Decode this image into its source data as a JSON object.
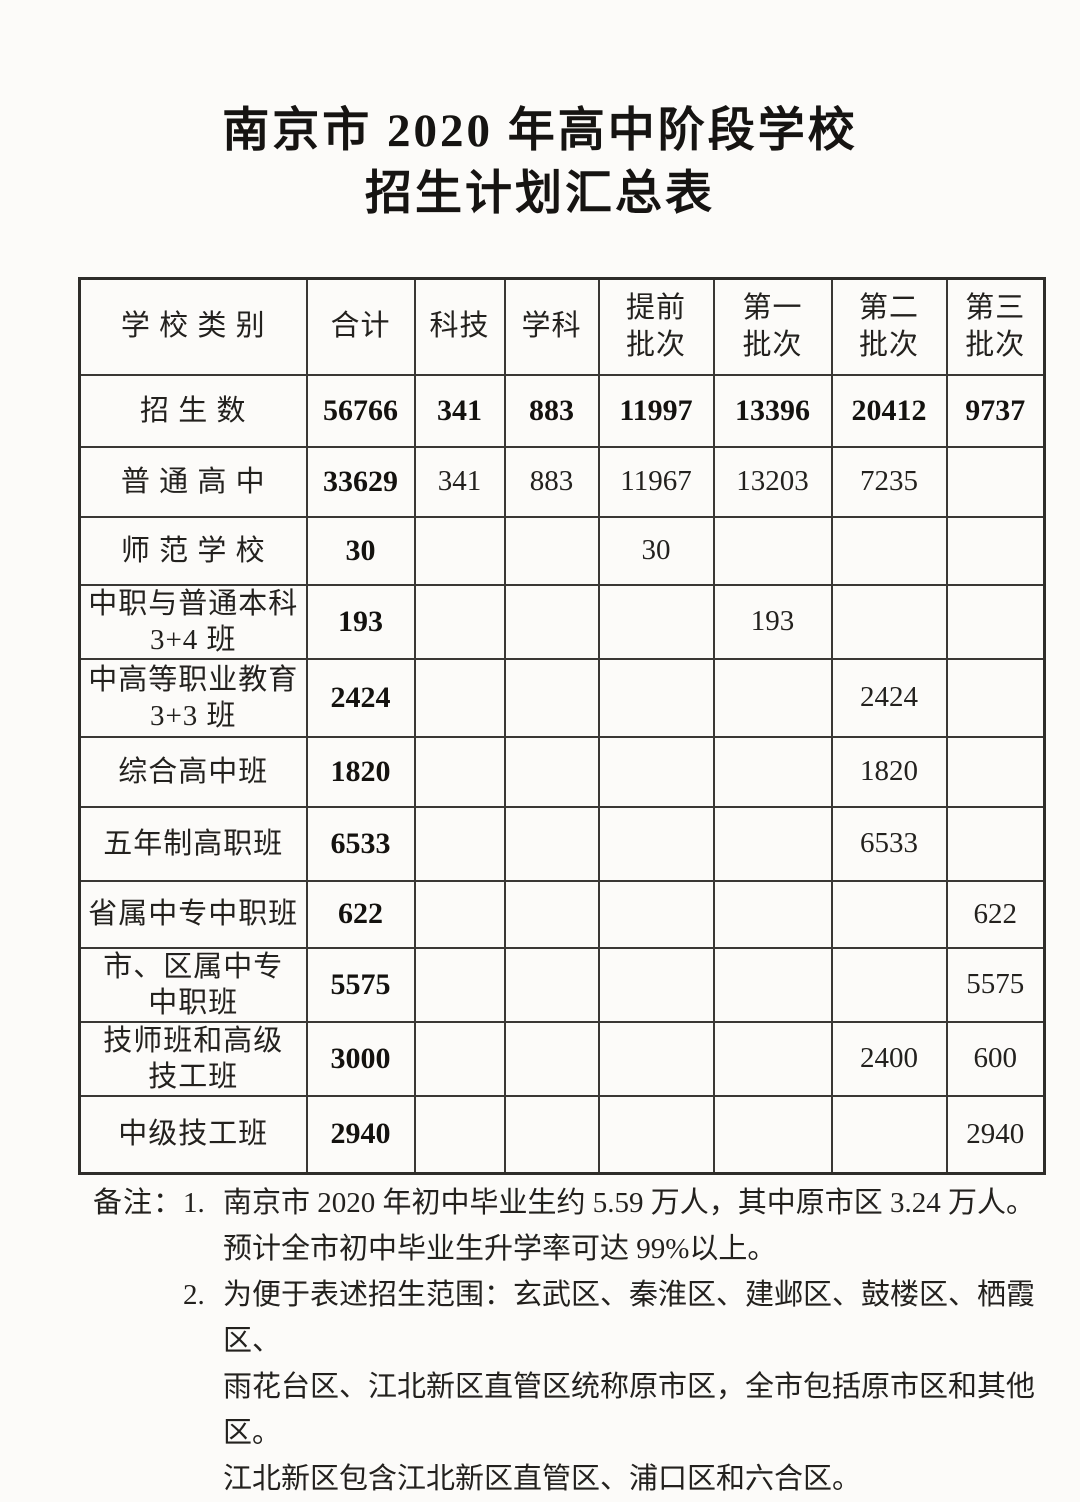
{
  "page": {
    "title_line1": "南京市 2020 年高中阶段学校",
    "title_line2": "招生计划汇总表"
  },
  "colors": {
    "background": "#fcfbf9",
    "text": "#23211e",
    "border": "#3a3835"
  },
  "table": {
    "columns": [
      "学 校 类 别",
      "合计",
      "科技",
      "学科",
      "提前\n批次",
      "第一\n批次",
      "第二\n批次",
      "第三\n批次"
    ],
    "rows": [
      {
        "label": "招 生 数",
        "values": [
          "56766",
          "341",
          "883",
          "11997",
          "13396",
          "20412",
          "9737"
        ],
        "emphasis": "all"
      },
      {
        "label": "普 通 高 中",
        "values": [
          "33629",
          "341",
          "883",
          "11967",
          "13203",
          "7235",
          ""
        ],
        "emphasis": "first"
      },
      {
        "label": "师 范 学 校",
        "values": [
          "30",
          "",
          "",
          "30",
          "",
          "",
          ""
        ],
        "emphasis": "first"
      },
      {
        "label": "中职与普通本科\n3+4 班",
        "values": [
          "193",
          "",
          "",
          "",
          "193",
          "",
          ""
        ],
        "emphasis": "first"
      },
      {
        "label": "中高等职业教育\n3+3 班",
        "values": [
          "2424",
          "",
          "",
          "",
          "",
          "2424",
          ""
        ],
        "emphasis": "first"
      },
      {
        "label": "综合高中班",
        "values": [
          "1820",
          "",
          "",
          "",
          "",
          "1820",
          ""
        ],
        "emphasis": "first"
      },
      {
        "label": "五年制高职班",
        "values": [
          "6533",
          "",
          "",
          "",
          "",
          "6533",
          ""
        ],
        "emphasis": "first"
      },
      {
        "label": "省属中专中职班",
        "values": [
          "622",
          "",
          "",
          "",
          "",
          "",
          "622"
        ],
        "emphasis": "first"
      },
      {
        "label": "市、区属中专\n中职班",
        "values": [
          "5575",
          "",
          "",
          "",
          "",
          "",
          "5575"
        ],
        "emphasis": "first"
      },
      {
        "label": "技师班和高级\n技工班",
        "values": [
          "3000",
          "",
          "",
          "",
          "",
          "2400",
          "600"
        ],
        "emphasis": "first"
      },
      {
        "label": "中级技工班",
        "values": [
          "2940",
          "",
          "",
          "",
          "",
          "",
          "2940"
        ],
        "emphasis": "first"
      }
    ]
  },
  "notes": {
    "label": "备注：",
    "items": [
      {
        "num": "1.",
        "text": "南京市 2020 年初中毕业生约 5.59 万人，其中原市区 3.24 万人。\n预计全市初中毕业生升学率可达 99%以上。"
      },
      {
        "num": "2.",
        "text": "为便于表述招生范围：玄武区、秦淮区、建邺区、鼓楼区、栖霞区、\n雨花台区、江北新区直管区统称原市区，全市包括原市区和其他区。\n江北新区包含江北新区直管区、浦口区和六合区。"
      }
    ]
  }
}
